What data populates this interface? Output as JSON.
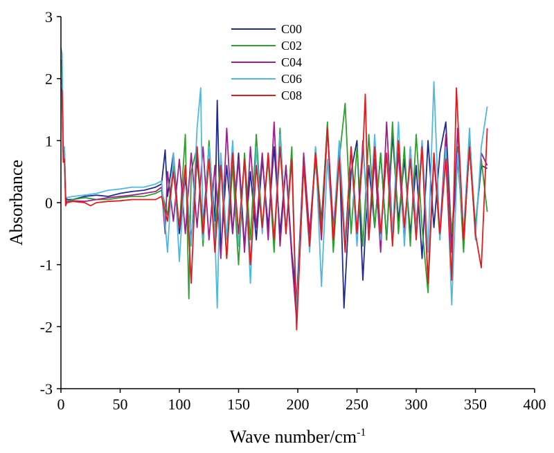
{
  "chart_data": {
    "type": "line",
    "title": "",
    "xlabel": "Wave number/cm",
    "xlabel_superscript": "-1",
    "ylabel": "Absorbance",
    "xlim": [
      0,
      400
    ],
    "ylim": [
      -3,
      3
    ],
    "x_ticks": [
      0,
      50,
      100,
      150,
      200,
      250,
      300,
      350,
      400
    ],
    "y_ticks": [
      -3,
      -2,
      -1,
      0,
      1,
      2,
      3
    ],
    "grid": false,
    "legend_position": "top-center",
    "series": [
      {
        "name": "C00",
        "color": "#1f2a8c",
        "x": [
          0,
          1,
          2,
          3,
          4,
          5,
          10,
          20,
          30,
          40,
          50,
          60,
          70,
          80,
          85,
          88,
          90,
          95,
          100,
          105,
          110,
          115,
          120,
          125,
          130,
          132,
          135,
          140,
          145,
          150,
          155,
          160,
          165,
          170,
          175,
          180,
          185,
          190,
          195,
          199,
          205,
          210,
          215,
          220,
          225,
          230,
          235,
          239,
          245,
          250,
          255,
          260,
          265,
          270,
          275,
          280,
          285,
          290,
          295,
          300,
          305,
          310,
          315,
          320,
          325,
          330,
          335,
          340,
          345,
          350,
          355,
          360
        ],
        "y": [
          2.3,
          2.2,
          0.8,
          0.85,
          0.1,
          0.05,
          0.05,
          0.1,
          0.12,
          0.1,
          0.15,
          0.18,
          0.2,
          0.25,
          0.3,
          0.85,
          0.1,
          0.8,
          -0.5,
          0.4,
          -0.6,
          0.7,
          -0.4,
          0.9,
          -0.3,
          1.65,
          -0.8,
          0.6,
          -0.5,
          0.8,
          -0.7,
          0.5,
          -0.6,
          0.7,
          -0.4,
          0.9,
          -0.5,
          0.6,
          -0.8,
          -1.6,
          0.7,
          -0.5,
          0.8,
          -0.3,
          1.25,
          -0.6,
          0.9,
          -1.7,
          0.5,
          1.0,
          -1.25,
          0.6,
          -0.4,
          0.8,
          -0.6,
          1.1,
          -0.3,
          0.7,
          -0.5,
          0.6,
          -0.9,
          1.0,
          -0.4,
          0.8,
          1.3,
          -0.6,
          0.7,
          -0.5,
          0.9,
          -0.4,
          0.6,
          0.55
        ]
      },
      {
        "name": "C02",
        "color": "#2ca02c",
        "x": [
          0,
          1,
          2,
          3,
          4,
          5,
          10,
          20,
          30,
          40,
          50,
          60,
          70,
          80,
          85,
          90,
          95,
          100,
          105,
          108,
          110,
          115,
          120,
          125,
          130,
          135,
          140,
          145,
          150,
          155,
          160,
          165,
          170,
          175,
          180,
          185,
          190,
          195,
          199,
          205,
          210,
          215,
          220,
          225,
          230,
          235,
          240,
          245,
          250,
          255,
          260,
          265,
          270,
          275,
          280,
          285,
          290,
          295,
          300,
          305,
          310,
          315,
          320,
          325,
          330,
          335,
          340,
          345,
          350,
          355,
          360
        ],
        "y": [
          2.25,
          2.1,
          0.75,
          0.8,
          0.05,
          0.02,
          0.05,
          0.08,
          0.05,
          0.05,
          0.08,
          0.1,
          0.1,
          0.15,
          0.2,
          -0.2,
          0.6,
          -0.4,
          1.1,
          -1.55,
          0.5,
          0.9,
          -0.7,
          1.0,
          -0.5,
          0.7,
          -0.9,
          0.6,
          -1.0,
          0.8,
          -0.6,
          1.1,
          -0.4,
          0.7,
          -0.8,
          1.2,
          -0.5,
          0.9,
          -1.95,
          0.6,
          -0.7,
          0.9,
          -0.4,
          1.3,
          -0.8,
          0.7,
          1.6,
          -0.5,
          0.9,
          -0.7,
          1.1,
          -0.4,
          0.8,
          -0.6,
          1.3,
          -0.5,
          0.9,
          -0.7,
          1.1,
          -0.4,
          -1.45,
          0.8,
          -0.6,
          1.0,
          -0.5,
          0.9,
          -0.8,
          1.1,
          -0.4,
          0.7,
          -0.15
        ]
      },
      {
        "name": "C04",
        "color": "#a0208a",
        "x": [
          0,
          1,
          2,
          3,
          4,
          5,
          10,
          20,
          30,
          40,
          50,
          60,
          70,
          80,
          85,
          88,
          90,
          95,
          100,
          105,
          110,
          115,
          120,
          125,
          130,
          135,
          140,
          145,
          150,
          155,
          160,
          165,
          170,
          175,
          180,
          185,
          190,
          195,
          199,
          205,
          210,
          215,
          220,
          225,
          230,
          235,
          240,
          245,
          250,
          255,
          260,
          265,
          270,
          275,
          280,
          285,
          290,
          295,
          300,
          305,
          310,
          315,
          320,
          325,
          330,
          335,
          340,
          345,
          350,
          355,
          360
        ],
        "y": [
          2.0,
          1.9,
          0.7,
          0.75,
          0.05,
          0.0,
          0.03,
          0.02,
          0.05,
          0.08,
          0.1,
          0.12,
          0.15,
          0.18,
          0.25,
          -0.5,
          0.5,
          -0.3,
          0.7,
          -0.5,
          0.8,
          -0.4,
          0.9,
          -0.6,
          0.6,
          -0.9,
          1.2,
          -0.5,
          0.7,
          -0.8,
          0.9,
          -0.4,
          0.8,
          -0.6,
          1.3,
          -0.7,
          0.6,
          -0.9,
          -1.9,
          0.8,
          -0.5,
          0.7,
          -0.6,
          1.2,
          -0.4,
          0.8,
          -0.7,
          0.9,
          -0.5,
          1.0,
          -0.6,
          0.7,
          -0.8,
          1.3,
          -0.5,
          0.8,
          -0.6,
          0.9,
          -0.4,
          1.0,
          -1.3,
          0.7,
          -0.5,
          1.1,
          -0.8,
          1.2,
          -0.6,
          0.9,
          -0.5,
          0.8,
          0.6
        ]
      },
      {
        "name": "C06",
        "color": "#4fb8e0",
        "x": [
          0,
          1,
          2,
          3,
          4,
          5,
          10,
          20,
          30,
          40,
          50,
          60,
          70,
          80,
          85,
          90,
          95,
          100,
          105,
          110,
          115,
          118,
          120,
          125,
          130,
          132,
          135,
          140,
          145,
          150,
          155,
          160,
          165,
          170,
          175,
          180,
          185,
          190,
          195,
          199,
          205,
          210,
          215,
          220,
          225,
          230,
          235,
          240,
          245,
          250,
          255,
          260,
          265,
          270,
          275,
          280,
          285,
          290,
          295,
          300,
          305,
          310,
          315,
          320,
          325,
          330,
          335,
          340,
          345,
          350,
          355,
          360
        ],
        "y": [
          2.5,
          2.4,
          0.85,
          0.9,
          0.1,
          0.08,
          0.1,
          0.12,
          0.15,
          0.2,
          0.22,
          0.25,
          0.25,
          0.3,
          0.35,
          -0.8,
          0.8,
          -0.95,
          0.6,
          -0.7,
          1.2,
          1.85,
          -0.6,
          0.9,
          -0.5,
          -1.7,
          0.8,
          -0.6,
          1.0,
          -0.7,
          0.7,
          -1.3,
          0.9,
          -0.5,
          0.8,
          -0.6,
          1.1,
          -0.4,
          0.7,
          -1.8,
          0.6,
          -0.8,
          0.9,
          -1.35,
          0.7,
          -0.5,
          1.0,
          -0.6,
          0.8,
          -0.7,
          0.9,
          -0.5,
          1.1,
          -0.6,
          0.8,
          -0.5,
          1.3,
          -0.7,
          0.9,
          -0.5,
          1.0,
          -0.8,
          1.95,
          -0.6,
          0.9,
          -1.65,
          0.8,
          -0.5,
          1.2,
          -0.6,
          0.9,
          1.55
        ]
      },
      {
        "name": "C08",
        "color": "#e31a1c",
        "x": [
          0,
          1,
          2,
          3,
          4,
          5,
          10,
          20,
          25,
          30,
          40,
          50,
          60,
          70,
          80,
          85,
          90,
          95,
          100,
          105,
          110,
          115,
          120,
          125,
          130,
          135,
          140,
          145,
          150,
          155,
          160,
          165,
          170,
          175,
          180,
          185,
          190,
          195,
          199,
          205,
          210,
          215,
          220,
          225,
          230,
          235,
          240,
          245,
          250,
          255,
          257,
          260,
          265,
          270,
          275,
          280,
          285,
          290,
          295,
          300,
          305,
          310,
          315,
          320,
          325,
          330,
          334,
          340,
          345,
          350,
          355,
          360
        ],
        "y": [
          1.85,
          1.8,
          0.65,
          0.7,
          -0.05,
          0.0,
          0.02,
          0.0,
          -0.05,
          0.0,
          0.02,
          0.03,
          0.05,
          0.05,
          0.05,
          0.1,
          -0.3,
          0.5,
          -0.4,
          0.6,
          -1.3,
          0.9,
          -0.5,
          0.7,
          -0.8,
          0.6,
          -0.9,
          0.8,
          -0.5,
          0.7,
          -1.0,
          0.6,
          -0.4,
          0.8,
          -0.6,
          0.9,
          -0.5,
          0.7,
          -2.05,
          0.6,
          -0.7,
          0.8,
          -0.5,
          1.2,
          -0.6,
          0.7,
          -0.8,
          0.9,
          -0.5,
          0.8,
          1.75,
          -0.6,
          0.9,
          -0.5,
          0.8,
          -0.7,
          1.0,
          -0.4,
          0.7,
          -0.6,
          0.9,
          -1.3,
          0.8,
          -0.5,
          0.7,
          -1.25,
          1.85,
          -0.6,
          0.9,
          -0.5,
          -1.05,
          1.2
        ]
      }
    ]
  }
}
